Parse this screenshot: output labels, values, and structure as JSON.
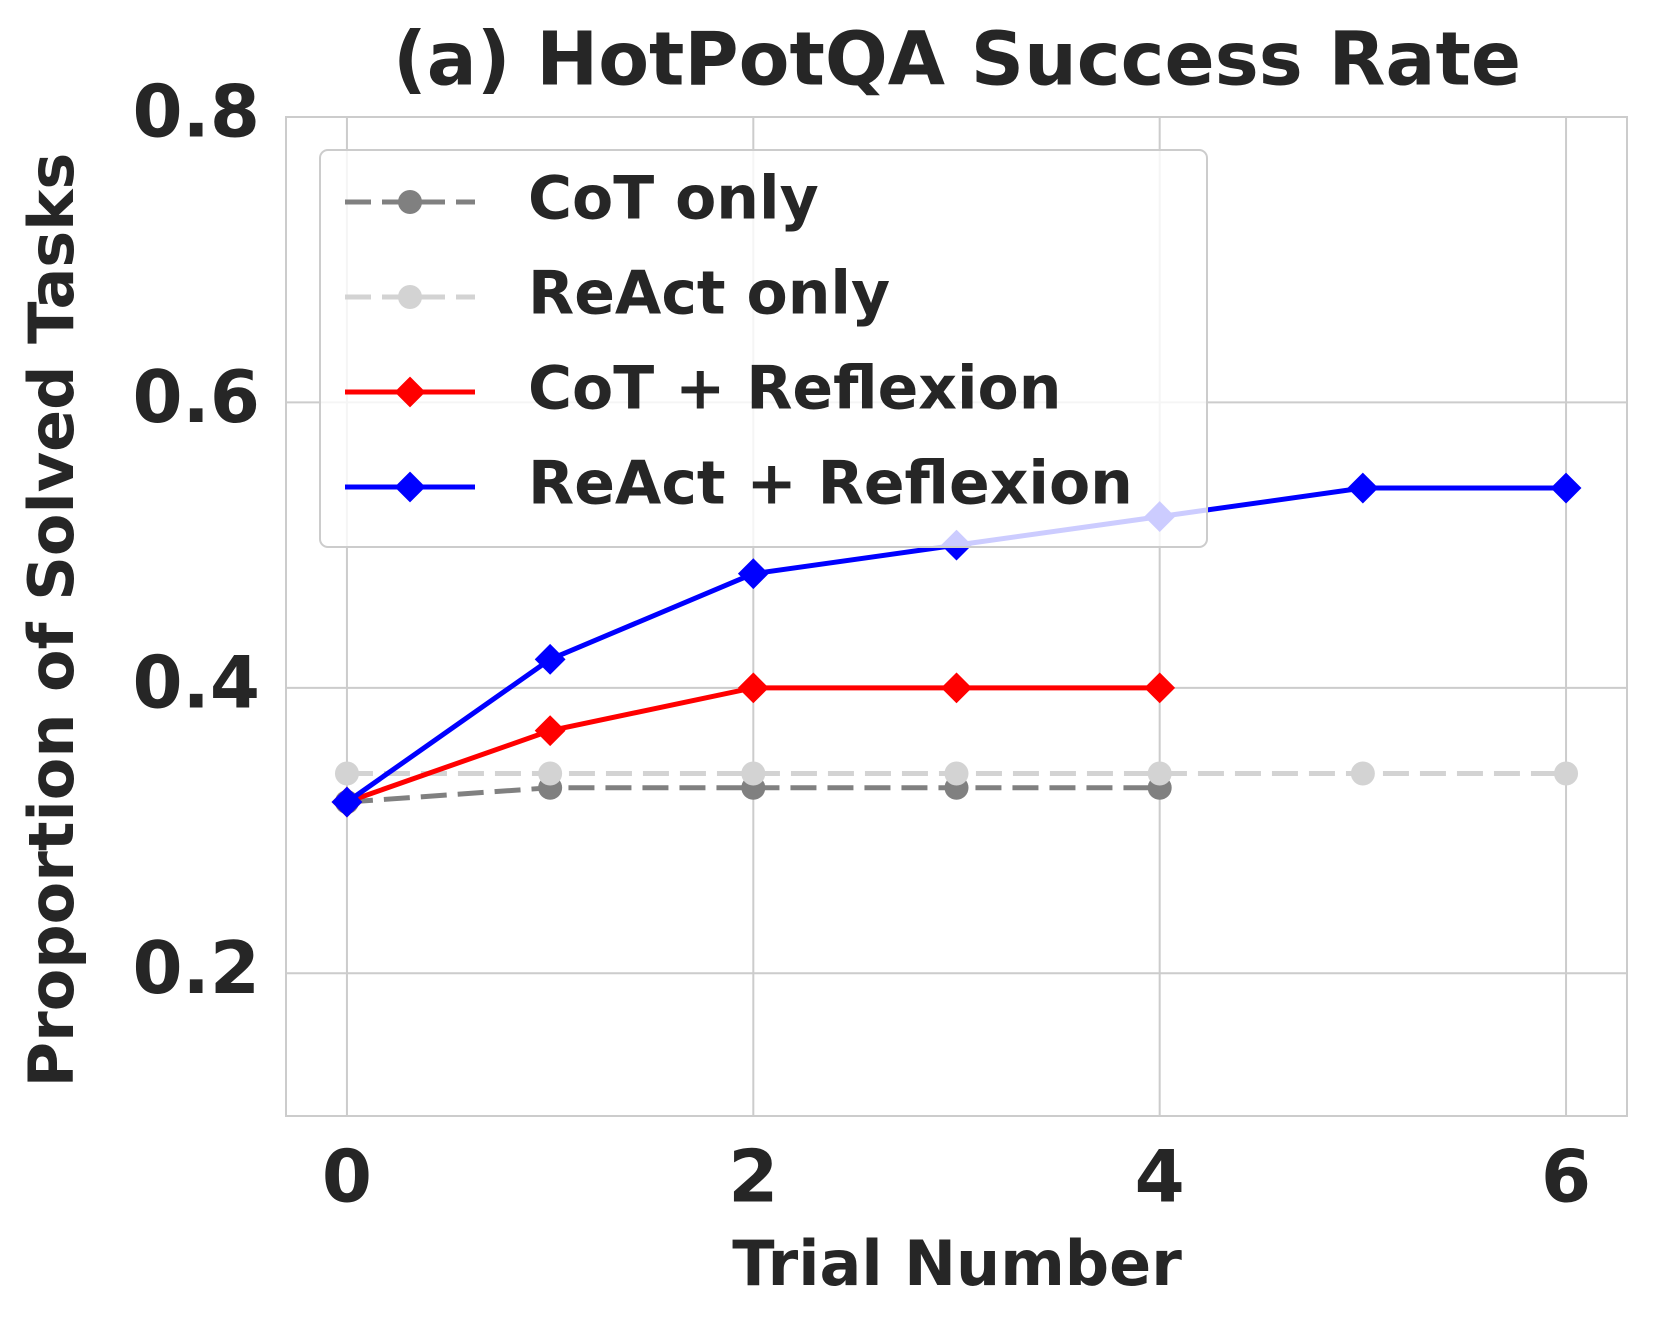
{
  "chart_data": {
    "type": "line",
    "title": "(a) HotPotQA Success Rate",
    "x_label": "Trial Number",
    "y_label": "Proportion of Solved Tasks",
    "x": [
      0,
      1,
      2,
      3,
      4,
      5,
      6
    ],
    "series": [
      {
        "name": "CoT only",
        "color": "#808080",
        "dash": true,
        "marker": "circle",
        "values": [
          0.32,
          0.33,
          0.33,
          0.33,
          0.33,
          null,
          null
        ]
      },
      {
        "name": "ReAct only",
        "color": "#d3d3d3",
        "dash": true,
        "marker": "circle",
        "values": [
          0.34,
          0.34,
          0.34,
          0.34,
          0.34,
          0.34,
          0.34
        ]
      },
      {
        "name": "CoT + Reflexion",
        "color": "#ff0000",
        "dash": false,
        "marker": "diamond",
        "values": [
          0.32,
          0.37,
          0.4,
          0.4,
          0.4,
          null,
          null
        ]
      },
      {
        "name": "ReAct + Reflexion",
        "color": "#0000ff",
        "dash": false,
        "marker": "diamond",
        "values": [
          0.32,
          0.42,
          0.48,
          0.5,
          0.52,
          0.54,
          0.54
        ]
      }
    ],
    "xlim": [
      -0.3,
      6.3
    ],
    "xticks": [
      0,
      2,
      4,
      6
    ],
    "ylim": [
      0.1,
      0.8
    ],
    "yticks": [
      0.2,
      0.4,
      0.6,
      0.8
    ],
    "grid": true,
    "legend": "upper left"
  }
}
